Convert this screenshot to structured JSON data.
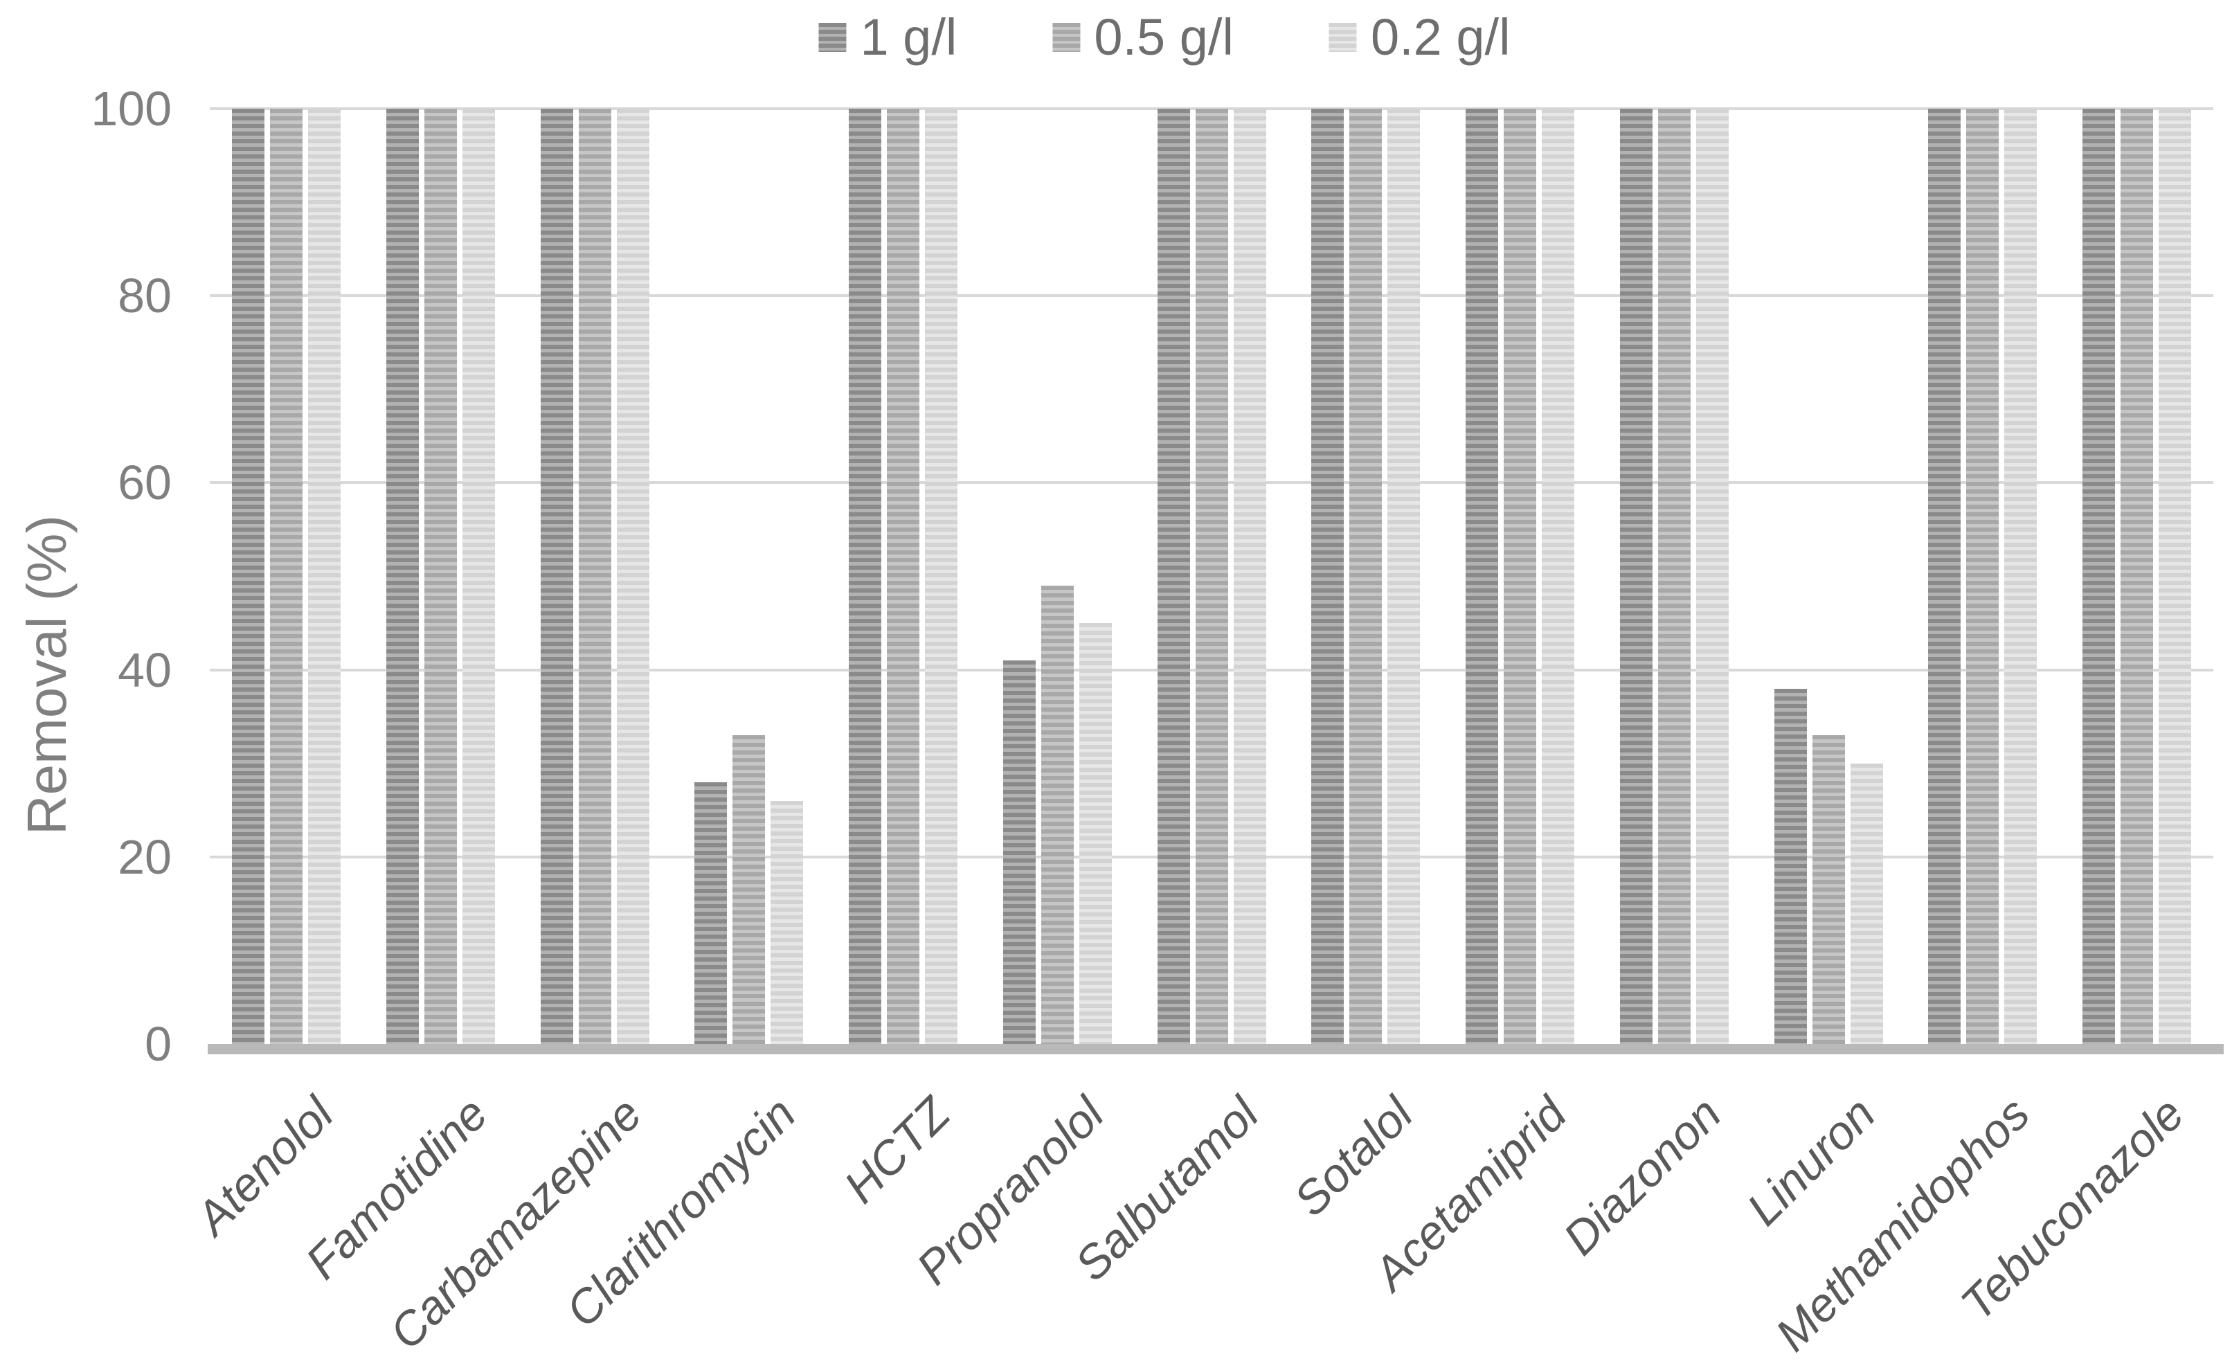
{
  "chart_data": {
    "type": "bar",
    "title": "",
    "xlabel": "",
    "ylabel": "Removal (%)",
    "ylim": [
      0,
      100
    ],
    "yticks": [
      0,
      20,
      40,
      60,
      80,
      100
    ],
    "grid": true,
    "legend_position": "top-center",
    "categories": [
      "Atenolol",
      "Famotidine",
      "Carbamazepine",
      "Clarithromycin",
      "HCTZ",
      "Propranolol",
      "Salbutamol",
      "Sotalol",
      "Acetamiprid",
      "Diazonon",
      "Linuron",
      "Methamidophos",
      "Tebuconazole"
    ],
    "series": [
      {
        "name": "1 g/l",
        "values": [
          100,
          100,
          100,
          28,
          100,
          41,
          100,
          100,
          100,
          100,
          38,
          100,
          100
        ],
        "stripe_dark": "#8a8a8a",
        "stripe_light": "#b2b2b2"
      },
      {
        "name": "0.5 g/l",
        "values": [
          100,
          100,
          100,
          33,
          100,
          49,
          100,
          100,
          100,
          100,
          33,
          100,
          100
        ],
        "stripe_dark": "#a8a8a8",
        "stripe_light": "#c6c6c6"
      },
      {
        "name": "0.2 g/l",
        "values": [
          100,
          100,
          100,
          26,
          100,
          45,
          100,
          100,
          100,
          100,
          30,
          100,
          100
        ],
        "stripe_dark": "#d3d3d3",
        "stripe_light": "#e6e6e6"
      }
    ],
    "colors": {
      "gridline": "#d9d9d9",
      "axis_line": "#b9b9b9",
      "tick_label": "#7f7f7f",
      "axis_title": "#7f7f7f",
      "x_label": "#595959",
      "legend_text": "#6e6e6e",
      "background": "#ffffff"
    }
  }
}
